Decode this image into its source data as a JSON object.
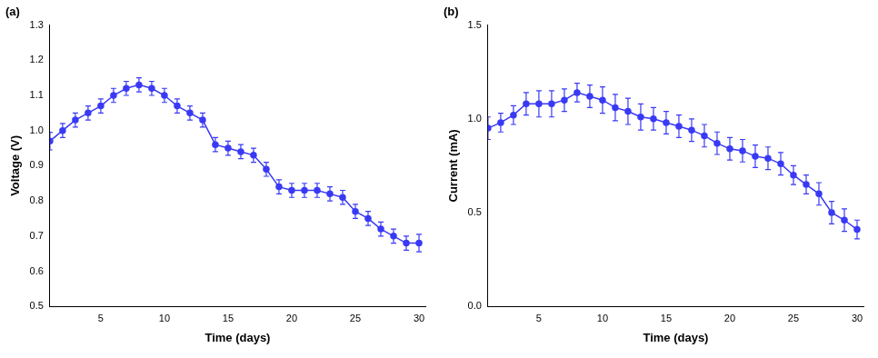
{
  "chart_data": [
    {
      "type": "line",
      "title": "(a)",
      "x_label": "Time (days)",
      "y_label": "Voltage (V)",
      "x": [
        1,
        2,
        3,
        4,
        5,
        6,
        7,
        8,
        9,
        10,
        11,
        12,
        13,
        14,
        15,
        16,
        17,
        18,
        19,
        20,
        21,
        22,
        23,
        24,
        25,
        26,
        27,
        28,
        29,
        30
      ],
      "values": [
        0.97,
        1.0,
        1.03,
        1.05,
        1.07,
        1.1,
        1.12,
        1.13,
        1.12,
        1.1,
        1.07,
        1.05,
        1.03,
        0.96,
        0.95,
        0.94,
        0.93,
        0.89,
        0.84,
        0.83,
        0.83,
        0.83,
        0.82,
        0.81,
        0.77,
        0.75,
        0.72,
        0.7,
        0.68,
        0.68
      ],
      "errors": [
        0.025,
        0.02,
        0.02,
        0.02,
        0.02,
        0.02,
        0.02,
        0.02,
        0.02,
        0.02,
        0.02,
        0.02,
        0.02,
        0.02,
        0.02,
        0.02,
        0.02,
        0.02,
        0.02,
        0.02,
        0.02,
        0.02,
        0.02,
        0.02,
        0.02,
        0.02,
        0.02,
        0.02,
        0.02,
        0.025
      ],
      "color": "#3a3af5",
      "marker": "circle",
      "line_style": "solid",
      "grid": false,
      "xlim": [
        1,
        30.5
      ],
      "xticks": [
        5,
        10,
        15,
        20,
        25,
        30
      ],
      "ylim": [
        0.5,
        1.3
      ],
      "yticks": [
        0.5,
        0.6,
        0.7,
        0.8,
        0.9,
        {
          "value": 1,
          "label": "1.0"
        },
        1.1,
        1.2,
        1.3
      ]
    },
    {
      "type": "line",
      "title": "(b)",
      "x_label": "Time (days)",
      "y_label": "Current (mA)",
      "x": [
        1,
        2,
        3,
        4,
        5,
        6,
        7,
        8,
        9,
        10,
        11,
        12,
        13,
        14,
        15,
        16,
        17,
        18,
        19,
        20,
        21,
        22,
        23,
        24,
        25,
        26,
        27,
        28,
        29,
        30
      ],
      "values": [
        0.95,
        0.98,
        1.02,
        1.08,
        1.08,
        1.08,
        1.1,
        1.14,
        1.12,
        1.1,
        1.06,
        1.04,
        1.01,
        1.0,
        0.98,
        0.96,
        0.94,
        0.91,
        0.87,
        0.84,
        0.83,
        0.8,
        0.79,
        0.76,
        0.7,
        0.65,
        0.6,
        0.5,
        0.46,
        0.41
      ],
      "errors": [
        0.06,
        0.05,
        0.05,
        0.06,
        0.07,
        0.07,
        0.06,
        0.05,
        0.06,
        0.07,
        0.07,
        0.07,
        0.07,
        0.06,
        0.06,
        0.06,
        0.06,
        0.06,
        0.06,
        0.06,
        0.06,
        0.06,
        0.06,
        0.06,
        0.05,
        0.05,
        0.06,
        0.06,
        0.06,
        0.05
      ],
      "color": "#3a3af5",
      "marker": "circle",
      "line_style": "solid",
      "grid": false,
      "xlim": [
        1,
        30.5
      ],
      "xticks": [
        5,
        10,
        15,
        20,
        25,
        30
      ],
      "ylim": [
        0,
        1.5
      ],
      "yticks": [
        {
          "value": 0,
          "label": "0.0"
        },
        0.5,
        {
          "value": 1,
          "label": "1.0"
        },
        1.5
      ]
    }
  ]
}
